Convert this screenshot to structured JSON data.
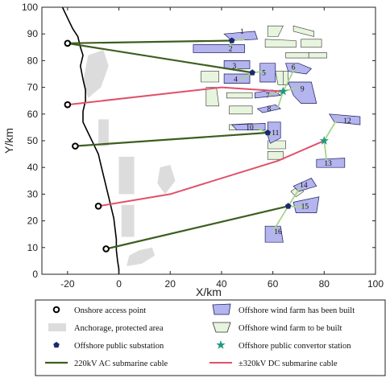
{
  "chart_data": {
    "type": "scatter",
    "title": "",
    "xlabel": "X/km",
    "ylabel": "Y/km",
    "xlim": [
      -30,
      100
    ],
    "ylim": [
      0,
      100
    ],
    "xticks": [
      "-20",
      "0",
      "20",
      "40",
      "60",
      "80",
      "100"
    ],
    "yticks": [
      "0",
      "10",
      "20",
      "30",
      "40",
      "50",
      "60",
      "70",
      "80",
      "90",
      "100"
    ],
    "legend_placement": "below-plot",
    "colors": {
      "ac_cable": "#3d5e1e",
      "dc_cable": "#e0506a",
      "inner_link": "#a8d48c",
      "built_fill": "#b4b4ee",
      "built_stroke": "#1a1a60",
      "unbuilt_fill": "#e8f5de",
      "unbuilt_stroke": "#333333",
      "anchorage": "#dcdcdc",
      "substation": "#1a2a6e",
      "converter": "#1f9a80"
    },
    "legend": [
      {
        "key": "onshore",
        "label": "Onshore access point"
      },
      {
        "key": "built",
        "label": "Offshore wind farm has been built"
      },
      {
        "key": "anchorage",
        "label": "Anchorage, protected area"
      },
      {
        "key": "unbuilt",
        "label": "Offshore wind farm to be built"
      },
      {
        "key": "substation",
        "label": "Offshore public substation"
      },
      {
        "key": "converter",
        "label": "Offshore public convertor station"
      },
      {
        "key": "ac",
        "label": "220kV AC submarine cable"
      },
      {
        "key": "dc",
        "label": "±320kV DC submarine cable"
      }
    ],
    "coastline": [
      [
        -22,
        100
      ],
      [
        -20,
        96
      ],
      [
        -18,
        92
      ],
      [
        -16,
        89
      ],
      [
        -15,
        85
      ],
      [
        -14,
        82
      ],
      [
        -15,
        78
      ],
      [
        -14,
        73
      ],
      [
        -13,
        69
      ],
      [
        -13,
        65
      ],
      [
        -14,
        61
      ],
      [
        -14,
        57
      ],
      [
        -12,
        53
      ],
      [
        -10,
        49
      ],
      [
        -8,
        45
      ],
      [
        -7,
        41
      ],
      [
        -6,
        37
      ],
      [
        -5,
        33
      ],
      [
        -4,
        29
      ],
      [
        -3,
        25
      ],
      [
        -2,
        21
      ],
      [
        -1.5,
        17
      ],
      [
        -1,
        13
      ],
      [
        -1,
        9
      ],
      [
        -0.5,
        5
      ],
      [
        0,
        2
      ],
      [
        0,
        0
      ]
    ],
    "onshore_points": [
      [
        -20,
        86.5
      ],
      [
        -20,
        63.5
      ],
      [
        -17,
        48
      ],
      [
        -8,
        25.5
      ],
      [
        -5,
        9.5
      ]
    ],
    "substations": [
      [
        44,
        87.5
      ],
      [
        52,
        75.5
      ],
      [
        58,
        53
      ],
      [
        66,
        25.5
      ]
    ],
    "converters": [
      [
        64,
        68.5
      ],
      [
        80,
        50
      ]
    ],
    "ac_cables": [
      [
        [
          -20,
          86.5
        ],
        [
          44,
          87.5
        ]
      ],
      [
        [
          -20,
          86.5
        ],
        [
          52,
          75.5
        ]
      ],
      [
        [
          -17,
          48
        ],
        [
          58,
          53
        ]
      ],
      [
        [
          -5,
          9.5
        ],
        [
          66,
          25.5
        ]
      ]
    ],
    "dc_cables": [
      [
        [
          -20,
          63.5
        ],
        [
          40,
          70
        ],
        [
          64,
          68.5
        ]
      ],
      [
        [
          -8,
          25.5
        ],
        [
          20,
          30
        ],
        [
          62,
          42.5
        ],
        [
          80,
          50
        ]
      ]
    ],
    "inner_links": [
      [
        [
          44,
          87.5
        ],
        [
          49,
          88
        ]
      ],
      [
        [
          44,
          87.5
        ],
        [
          43,
          84.5
        ]
      ],
      [
        [
          52,
          75.5
        ],
        [
          45,
          77
        ]
      ],
      [
        [
          52,
          75.5
        ],
        [
          47,
          72.5
        ]
      ],
      [
        [
          52,
          75.5
        ],
        [
          57,
          76
        ]
      ],
      [
        [
          64,
          68.5
        ],
        [
          69,
          78
        ]
      ],
      [
        [
          64,
          68.5
        ],
        [
          70,
          70
        ]
      ],
      [
        [
          64,
          68.5
        ],
        [
          62,
          62.5
        ]
      ],
      [
        [
          64,
          68.5
        ],
        [
          58,
          67
        ]
      ],
      [
        [
          58,
          53
        ],
        [
          60,
          52
        ]
      ],
      [
        [
          58,
          53
        ],
        [
          53,
          55
        ]
      ],
      [
        [
          80,
          50
        ],
        [
          85,
          58
        ]
      ],
      [
        [
          80,
          50
        ],
        [
          81,
          42
        ]
      ],
      [
        [
          66,
          25.5
        ],
        [
          71,
          33
        ]
      ],
      [
        [
          66,
          25.5
        ],
        [
          73,
          25
        ]
      ],
      [
        [
          66,
          25.5
        ],
        [
          60,
          16
        ]
      ]
    ],
    "anchorage_areas": [
      [
        [
          -12,
          82
        ],
        [
          -6,
          84
        ],
        [
          -4,
          78
        ],
        [
          -7,
          70
        ],
        [
          -12,
          66
        ],
        [
          -14,
          72
        ]
      ],
      [
        [
          -8,
          58
        ],
        [
          -4,
          58
        ],
        [
          -4,
          48
        ],
        [
          -8,
          48
        ]
      ],
      [
        [
          0,
          44
        ],
        [
          6,
          44
        ],
        [
          6,
          30
        ],
        [
          0,
          30
        ]
      ],
      [
        [
          16,
          40
        ],
        [
          20,
          41
        ],
        [
          22,
          35
        ],
        [
          18,
          30
        ],
        [
          15,
          34
        ]
      ],
      [
        [
          1,
          26
        ],
        [
          6,
          26
        ],
        [
          6,
          14
        ],
        [
          1,
          14
        ]
      ],
      [
        [
          4,
          7
        ],
        [
          8,
          9
        ],
        [
          13,
          10
        ],
        [
          14,
          7
        ],
        [
          9,
          4
        ],
        [
          3,
          3
        ]
      ]
    ],
    "built_farms": [
      {
        "label": "1",
        "lx": 48,
        "ly": 91,
        "poly": [
          [
            41,
            90
          ],
          [
            53,
            91
          ],
          [
            54,
            88
          ],
          [
            44,
            87.5
          ]
        ]
      },
      {
        "label": "2",
        "lx": 43.5,
        "ly": 84.5,
        "poly": [
          [
            29,
            86
          ],
          [
            49,
            86
          ],
          [
            49,
            83
          ],
          [
            29,
            83
          ]
        ]
      },
      {
        "label": "3",
        "lx": 45,
        "ly": 78,
        "poly": [
          [
            41,
            80
          ],
          [
            51,
            80
          ],
          [
            51,
            77
          ],
          [
            41,
            77
          ]
        ]
      },
      {
        "label": "4",
        "lx": 45.5,
        "ly": 73,
        "poly": [
          [
            41,
            75
          ],
          [
            51,
            75
          ],
          [
            51,
            71.5
          ],
          [
            41,
            71.5
          ]
        ]
      },
      {
        "label": "5",
        "lx": 56.5,
        "ly": 75.5,
        "poly": [
          [
            55,
            79
          ],
          [
            61,
            79
          ],
          [
            61,
            72
          ],
          [
            55,
            72
          ]
        ]
      },
      {
        "label": "6",
        "lx": 68,
        "ly": 77.5,
        "poly": [
          [
            65,
            79
          ],
          [
            70,
            79
          ],
          [
            75,
            77
          ],
          [
            73,
            75
          ],
          [
            66,
            76
          ]
        ]
      },
      {
        "label": "7",
        "lx": 58,
        "ly": 67,
        "poly": [
          [
            53,
            68
          ],
          [
            60,
            69
          ],
          [
            63,
            67
          ],
          [
            53,
            66
          ]
        ]
      },
      {
        "label": "8",
        "lx": 58.5,
        "ly": 62,
        "poly": [
          [
            54,
            62
          ],
          [
            61,
            63.5
          ],
          [
            63,
            62
          ],
          [
            56,
            60.5
          ]
        ]
      },
      {
        "label": "9",
        "lx": 71.5,
        "ly": 69.5,
        "poly": [
          [
            66,
            72
          ],
          [
            75,
            72
          ],
          [
            77,
            64
          ],
          [
            71,
            64
          ],
          [
            68,
            67
          ]
        ]
      },
      {
        "label": "10",
        "lx": 51,
        "ly": 55,
        "poly": [
          [
            44,
            56
          ],
          [
            57,
            56.5
          ],
          [
            57,
            54
          ],
          [
            46,
            54
          ]
        ]
      },
      {
        "label": "11",
        "lx": 61,
        "ly": 53,
        "poly": [
          [
            58,
            57
          ],
          [
            63,
            57
          ],
          [
            63,
            51
          ],
          [
            59,
            49
          ],
          [
            58,
            52
          ]
        ]
      },
      {
        "label": "12",
        "lx": 89,
        "ly": 57.5,
        "poly": [
          [
            82,
            60
          ],
          [
            94,
            59
          ],
          [
            94,
            56
          ],
          [
            84,
            57
          ]
        ]
      },
      {
        "label": "13",
        "lx": 81.5,
        "ly": 41.5,
        "poly": [
          [
            77,
            43
          ],
          [
            88,
            43.5
          ],
          [
            88,
            40
          ],
          [
            77,
            40
          ]
        ]
      },
      {
        "label": "14",
        "lx": 72,
        "ly": 33.5,
        "poly": [
          [
            68,
            33
          ],
          [
            75,
            36
          ],
          [
            77,
            33
          ],
          [
            70,
            31
          ]
        ]
      },
      {
        "label": "15",
        "lx": 72.5,
        "ly": 25.5,
        "poly": [
          [
            68,
            27
          ],
          [
            78,
            29
          ],
          [
            77,
            23
          ],
          [
            69,
            23
          ]
        ]
      },
      {
        "label": "16",
        "lx": 62,
        "ly": 16,
        "poly": [
          [
            57,
            18
          ],
          [
            63,
            18
          ],
          [
            64,
            12
          ],
          [
            57,
            12
          ]
        ]
      }
    ],
    "unbuilt_farms": [
      [
        [
          58,
          93
        ],
        [
          64,
          93
        ],
        [
          62,
          89
        ],
        [
          58,
          89
        ]
      ],
      [
        [
          57,
          88
        ],
        [
          69,
          87.5
        ],
        [
          69,
          85
        ],
        [
          57,
          85
        ]
      ],
      [
        [
          68,
          93
        ],
        [
          76,
          91
        ],
        [
          76,
          89
        ],
        [
          68,
          91
        ]
      ],
      [
        [
          71,
          88
        ],
        [
          79,
          88
        ],
        [
          79,
          85
        ],
        [
          71,
          85
        ]
      ],
      [
        [
          65,
          83
        ],
        [
          74,
          83
        ],
        [
          74,
          81
        ],
        [
          65,
          81
        ]
      ],
      [
        [
          74,
          83
        ],
        [
          81,
          83
        ],
        [
          81,
          81
        ],
        [
          74,
          81
        ]
      ],
      [
        [
          32,
          76
        ],
        [
          39,
          76
        ],
        [
          39,
          72
        ],
        [
          32,
          72
        ]
      ],
      [
        [
          61,
          76
        ],
        [
          64,
          76
        ],
        [
          65,
          71
        ],
        [
          62,
          71
        ]
      ],
      [
        [
          64,
          76
        ],
        [
          66,
          76
        ],
        [
          66,
          71
        ],
        [
          64,
          71
        ]
      ],
      [
        [
          34,
          70
        ],
        [
          38,
          70
        ],
        [
          39,
          63
        ],
        [
          34,
          63
        ]
      ],
      [
        [
          42,
          68
        ],
        [
          52,
          68
        ],
        [
          52,
          66
        ],
        [
          42,
          66
        ]
      ],
      [
        [
          43,
          63
        ],
        [
          52,
          63
        ],
        [
          52,
          60
        ],
        [
          43,
          60
        ]
      ],
      [
        [
          43,
          56
        ],
        [
          52,
          56.5
        ],
        [
          52,
          54
        ],
        [
          43,
          54
        ]
      ],
      [
        [
          58,
          50
        ],
        [
          65,
          50
        ],
        [
          65,
          47
        ],
        [
          58,
          47
        ]
      ],
      [
        [
          58,
          46
        ],
        [
          64,
          46
        ],
        [
          64,
          43
        ],
        [
          58,
          43
        ]
      ],
      [
        [
          67,
          31
        ],
        [
          70,
          33
        ],
        [
          72,
          31
        ],
        [
          69,
          29
        ]
      ]
    ]
  }
}
